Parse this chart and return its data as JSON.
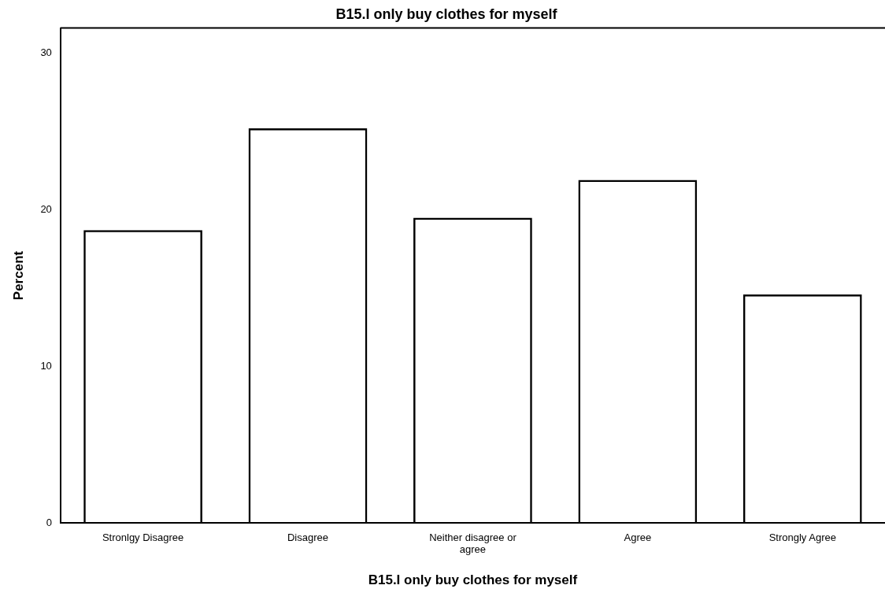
{
  "chart_data": {
    "type": "bar",
    "title": "B15.I only buy clothes for myself",
    "xlabel": "B15.I only buy clothes for myself",
    "ylabel": "Percent",
    "categories": [
      "Stronlgy Disagree",
      "Disagree",
      "Neither disagree or agree",
      "Agree",
      "Strongly Agree"
    ],
    "values": [
      18.7,
      25.2,
      19.5,
      21.9,
      14.6
    ],
    "color": "#000000",
    "ylim": [
      0,
      31.6
    ],
    "yticks": [
      0,
      10,
      20,
      30
    ],
    "grid": false,
    "legend": false
  }
}
